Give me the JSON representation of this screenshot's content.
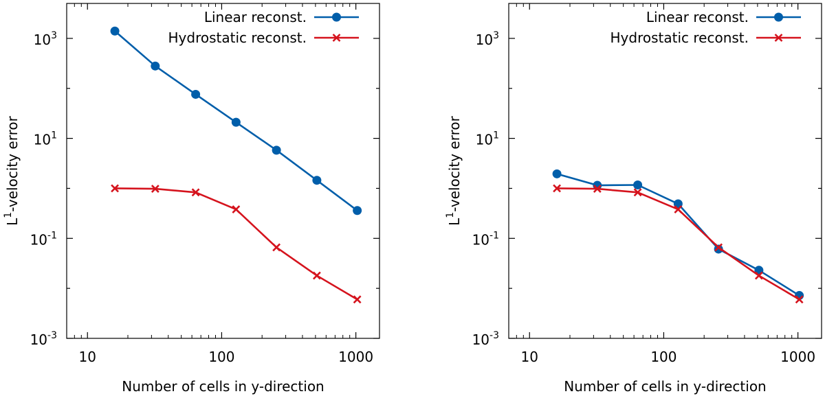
{
  "chart_data": [
    {
      "type": "line",
      "xscale": "log",
      "yscale": "log",
      "xlim": [
        7,
        1500
      ],
      "ylim": [
        0.001,
        5000
      ],
      "xlabel": "Number of cells in y-direction",
      "ylabel_base": "L",
      "ylabel_sup": "1",
      "ylabel_rest": "-velocity error",
      "xticks": [
        {
          "value": 10,
          "label": "10"
        },
        {
          "value": 100,
          "label": "100"
        },
        {
          "value": 1000,
          "label": "1000"
        }
      ],
      "yticks": [
        {
          "value": 0.001,
          "base": "10",
          "exp": "-3"
        },
        {
          "value": 0.1,
          "base": "10",
          "exp": "-1"
        },
        {
          "value": 10,
          "base": "10",
          "exp": "1"
        },
        {
          "value": 1000,
          "base": "10",
          "exp": "3"
        }
      ],
      "legend_position": "top-right",
      "series": [
        {
          "name": "Linear reconst.",
          "marker": "circle",
          "color": "#005eaa",
          "x": [
            16,
            32,
            64,
            128,
            256,
            512,
            1024
          ],
          "values": [
            1400,
            280,
            76,
            21,
            5.8,
            1.45,
            0.36
          ]
        },
        {
          "name": "Hydrostatic reconst.",
          "marker": "cross",
          "color": "#d5131d",
          "x": [
            16,
            32,
            64,
            128,
            256,
            512,
            1024
          ],
          "values": [
            1.0,
            0.98,
            0.83,
            0.38,
            0.066,
            0.018,
            0.006
          ]
        }
      ]
    },
    {
      "type": "line",
      "xscale": "log",
      "yscale": "log",
      "xlim": [
        7,
        1500
      ],
      "ylim": [
        0.001,
        5000
      ],
      "xlabel": "Number of cells in y-direction",
      "ylabel_base": "L",
      "ylabel_sup": "1",
      "ylabel_rest": "-velocity error",
      "xticks": [
        {
          "value": 10,
          "label": "10"
        },
        {
          "value": 100,
          "label": "100"
        },
        {
          "value": 1000,
          "label": "1000"
        }
      ],
      "yticks": [
        {
          "value": 0.001,
          "base": "10",
          "exp": "-3"
        },
        {
          "value": 0.1,
          "base": "10",
          "exp": "-1"
        },
        {
          "value": 10,
          "base": "10",
          "exp": "1"
        },
        {
          "value": 1000,
          "base": "10",
          "exp": "3"
        }
      ],
      "legend_position": "top-right",
      "series": [
        {
          "name": "Linear reconst.",
          "marker": "circle",
          "color": "#005eaa",
          "x": [
            16,
            32,
            64,
            128,
            256,
            512,
            1024
          ],
          "values": [
            1.95,
            1.15,
            1.17,
            0.49,
            0.061,
            0.023,
            0.0072
          ]
        },
        {
          "name": "Hydrostatic reconst.",
          "marker": "cross",
          "color": "#d5131d",
          "x": [
            16,
            32,
            64,
            128,
            256,
            512,
            1024
          ],
          "values": [
            1.0,
            0.98,
            0.83,
            0.38,
            0.066,
            0.018,
            0.006
          ]
        }
      ]
    }
  ]
}
